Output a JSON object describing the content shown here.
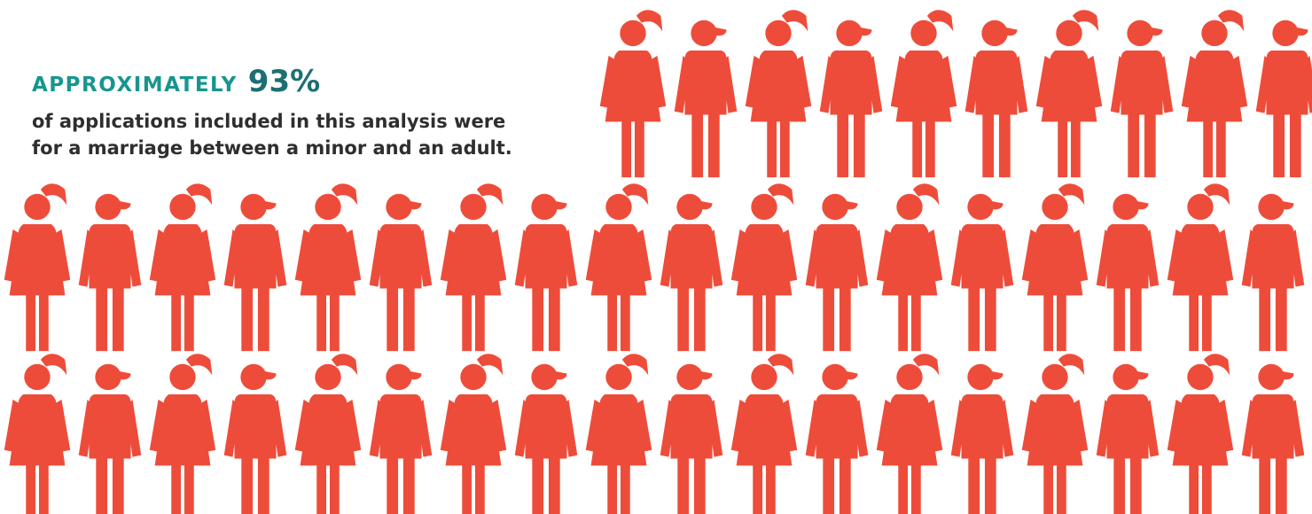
{
  "headline": {
    "lead": "APPROXIMATELY",
    "percent": "93%"
  },
  "description": {
    "line1": "of applications included in this analysis were",
    "line2": "for a marriage between a minor and an adult."
  },
  "colors": {
    "figure": "#ee4c3a",
    "headline_lead": "#17968f",
    "headline_percent": "#1c6f72",
    "body_text": "#2e2e2e"
  },
  "icons": {
    "girl": "girl-figure-icon",
    "boy": "boy-figure-icon"
  }
}
